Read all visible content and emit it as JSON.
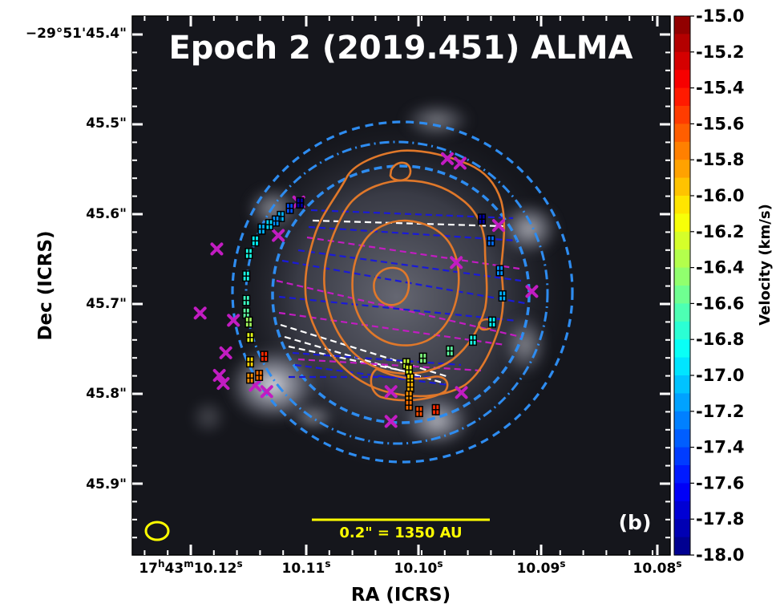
{
  "chart_data": {
    "type": "scatter",
    "title": "Epoch 2 (2019.451) ALMA",
    "panel_label": "(b)",
    "scale_bar_label": "0.2\" = 1350 AU",
    "xlabel": "RA (ICRS)",
    "ylabel": "Dec (ICRS)",
    "x_ticks": [
      {
        "h": "17",
        "m": "43",
        "s": "10.12",
        "full": true
      },
      {
        "s": "10.11"
      },
      {
        "s": "10.10"
      },
      {
        "s": "10.09"
      },
      {
        "s": "10.08"
      }
    ],
    "y_ticks": [
      "−29°51'45.4\"",
      "45.5\"",
      "45.6\"",
      "45.7\"",
      "45.8\"",
      "45.9\""
    ],
    "xlim_s": [
      10.1215,
      10.0795
    ],
    "ylim_arcsec": [
      45.385,
      45.982
    ],
    "colorbar": {
      "label": "Velocity (km/s)",
      "range": [
        -18.0,
        -15.0
      ],
      "ticks": [
        "-15.0",
        "-15.2",
        "-15.4",
        "-15.6",
        "-15.8",
        "-16.0",
        "-16.2",
        "-16.4",
        "-16.6",
        "-16.8",
        "-17.0",
        "-17.2",
        "-17.4",
        "-17.6",
        "-17.8",
        "-18.0"
      ]
    },
    "legend": "none",
    "colors": {
      "background": "#15161c",
      "contour": "#e0782a",
      "ring": "#2e8cf0",
      "chords_blue": "#1a1ad8",
      "chords_magenta": "#c21cc2",
      "chords_white": "#ffffff",
      "beam": "#ffff00",
      "x_marker": "#c21cc2"
    },
    "maser_spots": [
      {
        "ra": 10.1084,
        "dec": 45.592,
        "v": -17.9
      },
      {
        "ra": 10.1092,
        "dec": 45.598,
        "v": -17.4
      },
      {
        "ra": 10.1099,
        "dec": 45.607,
        "v": -17.1
      },
      {
        "ra": 10.1103,
        "dec": 45.612,
        "v": -17.2
      },
      {
        "ra": 10.1108,
        "dec": 45.616,
        "v": -17.0
      },
      {
        "ra": 10.1114,
        "dec": 45.621,
        "v": -17.1
      },
      {
        "ra": 10.1119,
        "dec": 45.634,
        "v": -16.9
      },
      {
        "ra": 10.1124,
        "dec": 45.648,
        "v": -16.8
      },
      {
        "ra": 10.1126,
        "dec": 45.673,
        "v": -16.8
      },
      {
        "ra": 10.1126,
        "dec": 45.7,
        "v": -16.7
      },
      {
        "ra": 10.1126,
        "dec": 45.714,
        "v": -16.6
      },
      {
        "ra": 10.1124,
        "dec": 45.724,
        "v": -16.4
      },
      {
        "ra": 10.1123,
        "dec": 45.741,
        "v": -16.2
      },
      {
        "ra": 10.1123,
        "dec": 45.768,
        "v": -16.0
      },
      {
        "ra": 10.1123,
        "dec": 45.786,
        "v": -15.8
      },
      {
        "ra": 10.1116,
        "dec": 45.783,
        "v": -15.7
      },
      {
        "ra": 10.1112,
        "dec": 45.762,
        "v": -15.5
      },
      {
        "ra": 10.1001,
        "dec": 45.77,
        "v": -16.3
      },
      {
        "ra": 10.0999,
        "dec": 45.777,
        "v": -16.2
      },
      {
        "ra": 10.0998,
        "dec": 45.787,
        "v": -16.0
      },
      {
        "ra": 10.0998,
        "dec": 45.796,
        "v": -15.9
      },
      {
        "ra": 10.0999,
        "dec": 45.806,
        "v": -15.8
      },
      {
        "ra": 10.0999,
        "dec": 45.816,
        "v": -15.7
      },
      {
        "ra": 10.0991,
        "dec": 45.823,
        "v": -15.6
      },
      {
        "ra": 10.0978,
        "dec": 45.821,
        "v": -15.5
      },
      {
        "ra": 10.0988,
        "dec": 45.764,
        "v": -16.5
      },
      {
        "ra": 10.0967,
        "dec": 45.756,
        "v": -16.6
      },
      {
        "ra": 10.0949,
        "dec": 45.744,
        "v": -16.8
      },
      {
        "ra": 10.0934,
        "dec": 45.724,
        "v": -16.9
      },
      {
        "ra": 10.0926,
        "dec": 45.695,
        "v": -17.1
      },
      {
        "ra": 10.0928,
        "dec": 45.667,
        "v": -17.2
      },
      {
        "ra": 10.0935,
        "dec": 45.634,
        "v": -17.3
      },
      {
        "ra": 10.0942,
        "dec": 45.61,
        "v": -17.9
      }
    ],
    "x_markers": [
      {
        "ra": 10.0969,
        "dec": 45.543
      },
      {
        "ra": 10.0959,
        "dec": 45.548
      },
      {
        "ra": 10.0929,
        "dec": 45.617
      },
      {
        "ra": 10.0903,
        "dec": 45.69
      },
      {
        "ra": 10.1085,
        "dec": 45.591
      },
      {
        "ra": 10.1101,
        "dec": 45.628
      },
      {
        "ra": 10.1149,
        "dec": 45.643
      },
      {
        "ra": 10.1162,
        "dec": 45.714
      },
      {
        "ra": 10.1136,
        "dec": 45.722
      },
      {
        "ra": 10.1142,
        "dec": 45.758
      },
      {
        "ra": 10.1147,
        "dec": 45.783
      },
      {
        "ra": 10.1144,
        "dec": 45.792
      },
      {
        "ra": 10.1119,
        "dec": 45.794
      },
      {
        "ra": 10.111,
        "dec": 45.801
      },
      {
        "ra": 10.1013,
        "dec": 45.801
      },
      {
        "ra": 10.1013,
        "dec": 45.834
      },
      {
        "ra": 10.0958,
        "dec": 45.802
      },
      {
        "ra": 10.0962,
        "dec": 45.658
      }
    ]
  }
}
